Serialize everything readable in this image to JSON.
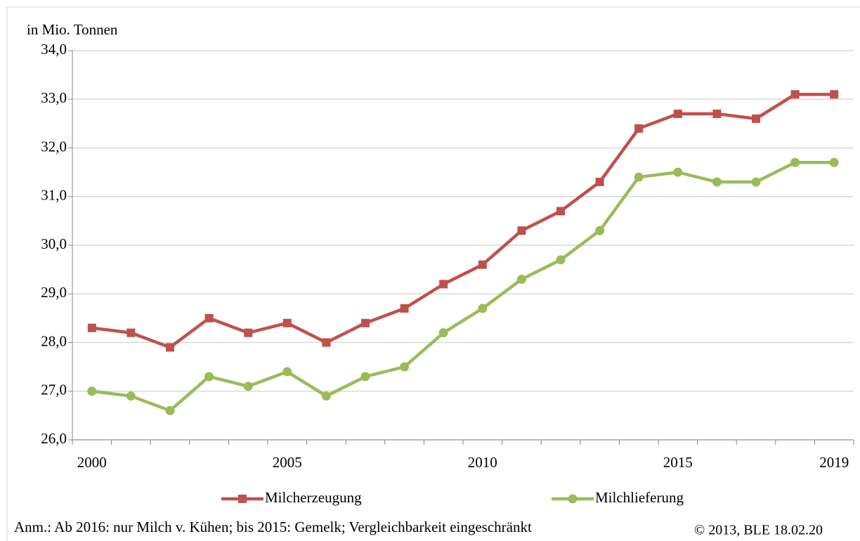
{
  "chart_data": {
    "type": "line",
    "y_axis_label": "in Mio. Tonnen",
    "categories": [
      "2000",
      null,
      null,
      null,
      null,
      "2005",
      null,
      null,
      null,
      null,
      "2010",
      null,
      null,
      null,
      null,
      "2015",
      null,
      null,
      null,
      "2019"
    ],
    "series": [
      {
        "name": "Milcherzeugung",
        "color": "#c0504d",
        "marker": "square",
        "values": [
          28.3,
          28.2,
          27.9,
          28.5,
          28.2,
          28.4,
          28.0,
          28.4,
          28.7,
          29.2,
          29.6,
          30.3,
          30.7,
          31.3,
          32.4,
          32.7,
          32.7,
          32.6,
          33.1,
          33.1
        ]
      },
      {
        "name": "Milchlieferung",
        "color": "#9bbb59",
        "marker": "circle",
        "values": [
          27.0,
          26.9,
          26.6,
          27.3,
          27.1,
          27.4,
          26.9,
          27.3,
          27.5,
          28.2,
          28.7,
          29.3,
          29.7,
          30.3,
          31.4,
          31.5,
          31.3,
          31.3,
          31.7,
          31.7
        ]
      }
    ],
    "ylim": [
      26,
      34
    ],
    "yticks": [
      {
        "value": 26,
        "label": "26,0"
      },
      {
        "value": 27,
        "label": "27,0"
      },
      {
        "value": 28,
        "label": "28,0"
      },
      {
        "value": 29,
        "label": "29,0"
      },
      {
        "value": 30,
        "label": "30,0"
      },
      {
        "value": 31,
        "label": "31,0"
      },
      {
        "value": 32,
        "label": "32,0"
      },
      {
        "value": 33,
        "label": "33,0"
      },
      {
        "value": 34,
        "label": "34,0"
      }
    ],
    "grid": true,
    "legend": "bottom",
    "note": "Anm.: Ab 2016: nur Milch v. Kühen; bis 2015: Gemelk; Vergleichbarkeit eingeschränkt",
    "source": "© 2013, BLE 18.02.20"
  }
}
